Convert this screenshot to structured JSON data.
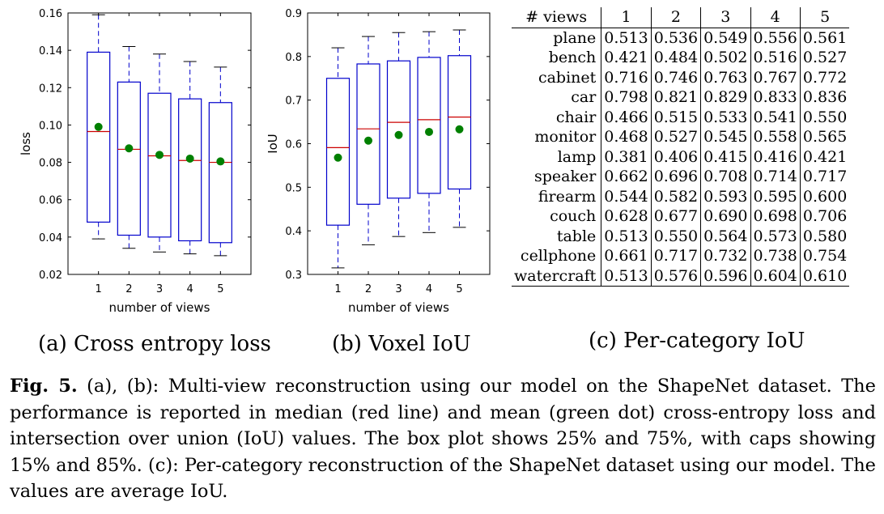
{
  "subcaptions": {
    "a": "(a) Cross entropy loss",
    "b": "(b) Voxel IoU",
    "c": "(c) Per-category IoU"
  },
  "caption": {
    "label": "Fig. 5.",
    "text": " (a), (b): Multi-view reconstruction using our model on the ShapeNet dataset. The performance is reported in median (red line) and mean (green dot) cross-entropy loss and intersection over union (IoU) values. The box plot shows 25% and 75%, with caps showing 15% and 85%. (c): Per-category reconstruction of the ShapeNet dataset using our model. The values are average IoU."
  },
  "colors": {
    "box": "#0000cc",
    "median": "#cc0000",
    "mean": "#008000"
  },
  "chart_data": [
    {
      "type": "box",
      "xlabel": "number of views",
      "ylabel": "loss",
      "ylim": [
        0.02,
        0.16
      ],
      "yticks": [
        "0.02",
        "0.04",
        "0.06",
        "0.08",
        "0.10",
        "0.12",
        "0.14",
        "0.16"
      ],
      "categories": [
        "1",
        "2",
        "3",
        "4",
        "5"
      ],
      "whisker_low": [
        0.039,
        0.034,
        0.032,
        0.031,
        0.03
      ],
      "q1": [
        0.048,
        0.041,
        0.04,
        0.038,
        0.037
      ],
      "median": [
        0.0965,
        0.087,
        0.0835,
        0.081,
        0.08
      ],
      "q3": [
        0.139,
        0.123,
        0.117,
        0.114,
        0.112
      ],
      "whisker_high": [
        0.159,
        0.142,
        0.138,
        0.134,
        0.131
      ],
      "mean": [
        0.099,
        0.0875,
        0.084,
        0.082,
        0.0805
      ]
    },
    {
      "type": "box",
      "xlabel": "number of views",
      "ylabel": "IoU",
      "ylim": [
        0.3,
        0.9
      ],
      "yticks": [
        "0.3",
        "0.4",
        "0.5",
        "0.6",
        "0.7",
        "0.8",
        "0.9"
      ],
      "categories": [
        "1",
        "2",
        "3",
        "4",
        "5"
      ],
      "whisker_low": [
        0.315,
        0.368,
        0.387,
        0.396,
        0.408
      ],
      "q1": [
        0.413,
        0.461,
        0.475,
        0.486,
        0.496
      ],
      "median": [
        0.591,
        0.634,
        0.649,
        0.655,
        0.661
      ],
      "q3": [
        0.75,
        0.783,
        0.79,
        0.798,
        0.802
      ],
      "whisker_high": [
        0.82,
        0.846,
        0.855,
        0.857,
        0.861
      ],
      "mean": [
        0.568,
        0.607,
        0.62,
        0.627,
        0.633
      ]
    },
    {
      "type": "table",
      "header": [
        "# views",
        "1",
        "2",
        "3",
        "4",
        "5"
      ],
      "rows": [
        [
          "plane",
          "0.513",
          "0.536",
          "0.549",
          "0.556",
          "0.561"
        ],
        [
          "bench",
          "0.421",
          "0.484",
          "0.502",
          "0.516",
          "0.527"
        ],
        [
          "cabinet",
          "0.716",
          "0.746",
          "0.763",
          "0.767",
          "0.772"
        ],
        [
          "car",
          "0.798",
          "0.821",
          "0.829",
          "0.833",
          "0.836"
        ],
        [
          "chair",
          "0.466",
          "0.515",
          "0.533",
          "0.541",
          "0.550"
        ],
        [
          "monitor",
          "0.468",
          "0.527",
          "0.545",
          "0.558",
          "0.565"
        ],
        [
          "lamp",
          "0.381",
          "0.406",
          "0.415",
          "0.416",
          "0.421"
        ],
        [
          "speaker",
          "0.662",
          "0.696",
          "0.708",
          "0.714",
          "0.717"
        ],
        [
          "firearm",
          "0.544",
          "0.582",
          "0.593",
          "0.595",
          "0.600"
        ],
        [
          "couch",
          "0.628",
          "0.677",
          "0.690",
          "0.698",
          "0.706"
        ],
        [
          "table",
          "0.513",
          "0.550",
          "0.564",
          "0.573",
          "0.580"
        ],
        [
          "cellphone",
          "0.661",
          "0.717",
          "0.732",
          "0.738",
          "0.754"
        ],
        [
          "watercraft",
          "0.513",
          "0.576",
          "0.596",
          "0.604",
          "0.610"
        ]
      ]
    }
  ]
}
